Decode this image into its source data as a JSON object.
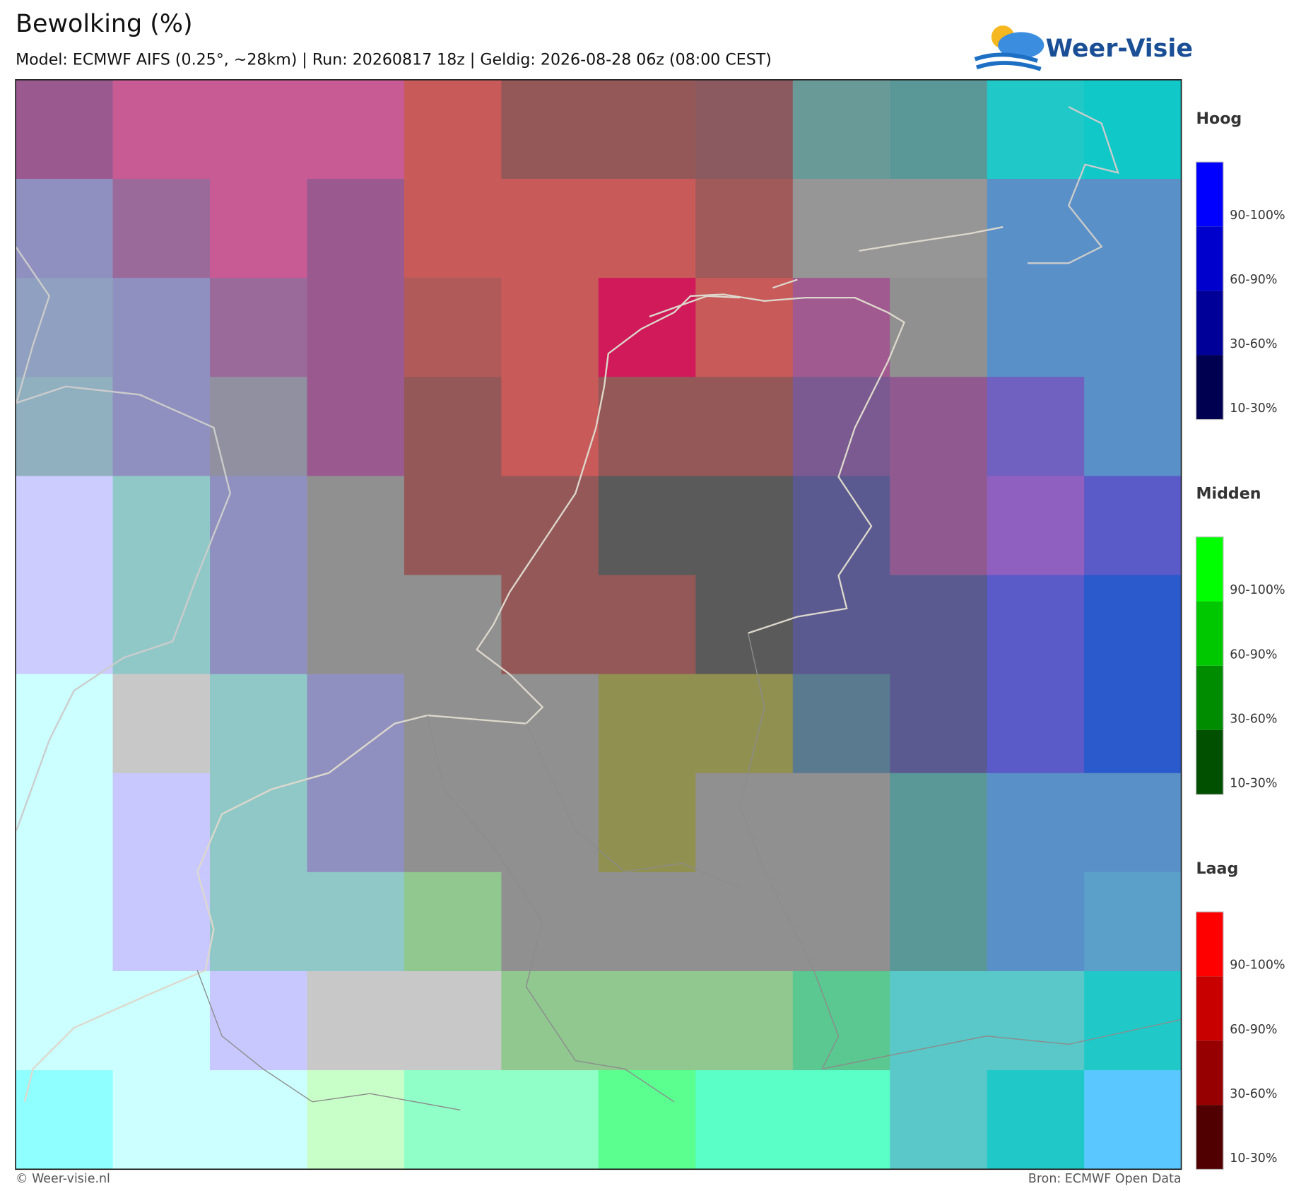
{
  "header": {
    "title": "Bewolking (%)",
    "subtitle": "Model: ECMWF AIFS (0.25°, ~28km)  |  Run: 20260817 18z  |  Geldig: 2026-08-28 06z (08:00 CEST)",
    "logo": "Weer-Visie"
  },
  "legend": [
    {
      "title": "Hoog",
      "labels": [
        "90-100%",
        "60-90%",
        "30-60%",
        "10-30%"
      ]
    },
    {
      "title": "Midden",
      "labels": [
        "90-100%",
        "60-90%",
        "30-60%",
        "10-30%"
      ]
    },
    {
      "title": "Laag",
      "labels": [
        "90-100%",
        "60-90%",
        "30-60%",
        "10-30%"
      ]
    }
  ],
  "footer": {
    "left": "© Weer-visie.nl",
    "right": "Bron: ECMWF Open Data"
  }
}
